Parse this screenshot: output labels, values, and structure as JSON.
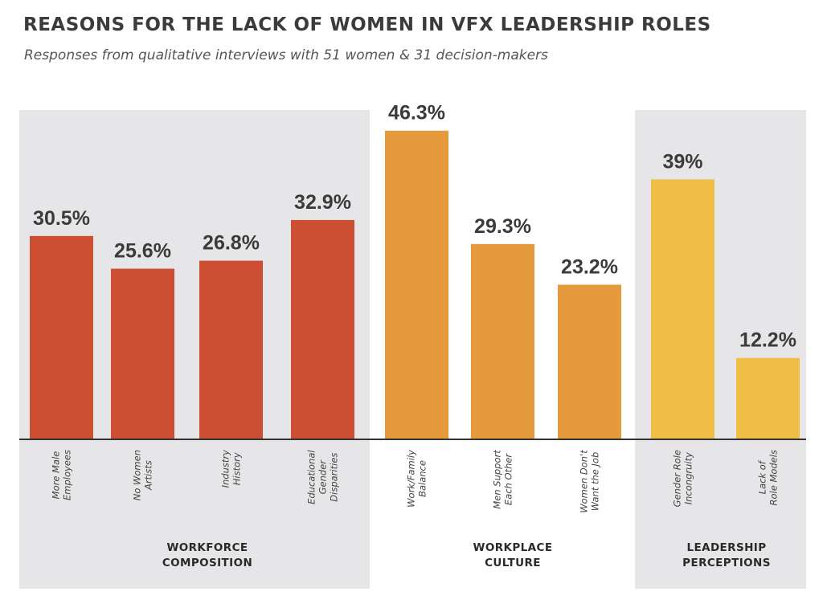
{
  "chart_data": {
    "type": "bar",
    "title": "REASONS FOR THE LACK OF WOMEN IN VFX LEADERSHIP ROLES",
    "subtitle": "Responses from qualitative interviews with 51 women & 31 decision-makers",
    "xlabel": "",
    "ylabel": "",
    "ylim": [
      0,
      50
    ],
    "grid": false,
    "legend": "none",
    "groups": [
      {
        "label_lines": [
          "WORKFORCE",
          "COMPOSITION"
        ],
        "shaded": true,
        "color": "#cc4f34",
        "bars": [
          {
            "label_lines": [
              "More Male",
              "Employees"
            ],
            "value": 30.5,
            "value_label": "30.5%"
          },
          {
            "label_lines": [
              "No Women",
              "Artists"
            ],
            "value": 25.6,
            "value_label": "25.6%"
          },
          {
            "label_lines": [
              "Industry",
              "History"
            ],
            "value": 26.8,
            "value_label": "26.8%"
          },
          {
            "label_lines": [
              "Educational",
              "Gender",
              "Disparities"
            ],
            "value": 32.9,
            "value_label": "32.9%"
          }
        ]
      },
      {
        "label_lines": [
          "WORKPLACE",
          "CULTURE"
        ],
        "shaded": false,
        "color": "#e59a3e",
        "bars": [
          {
            "label_lines": [
              "Work/Family",
              "Balance"
            ],
            "value": 46.3,
            "value_label": "46.3%"
          },
          {
            "label_lines": [
              "Men Support",
              "Each Other"
            ],
            "value": 29.3,
            "value_label": "29.3%"
          },
          {
            "label_lines": [
              "Women Don't",
              "Want the Job"
            ],
            "value": 23.2,
            "value_label": "23.2%"
          }
        ]
      },
      {
        "label_lines": [
          "LEADERSHIP",
          "PERCEPTIONS"
        ],
        "shaded": true,
        "color": "#f0bd45",
        "bars": [
          {
            "label_lines": [
              "Gender Role",
              "Incongruity"
            ],
            "value": 39,
            "value_label": "39%"
          },
          {
            "label_lines": [
              "Lack of",
              "Role Models"
            ],
            "value": 12.2,
            "value_label": "12.2%"
          }
        ]
      }
    ]
  },
  "colors": {
    "panel": "#e6e6e8",
    "axis": "#333333"
  }
}
